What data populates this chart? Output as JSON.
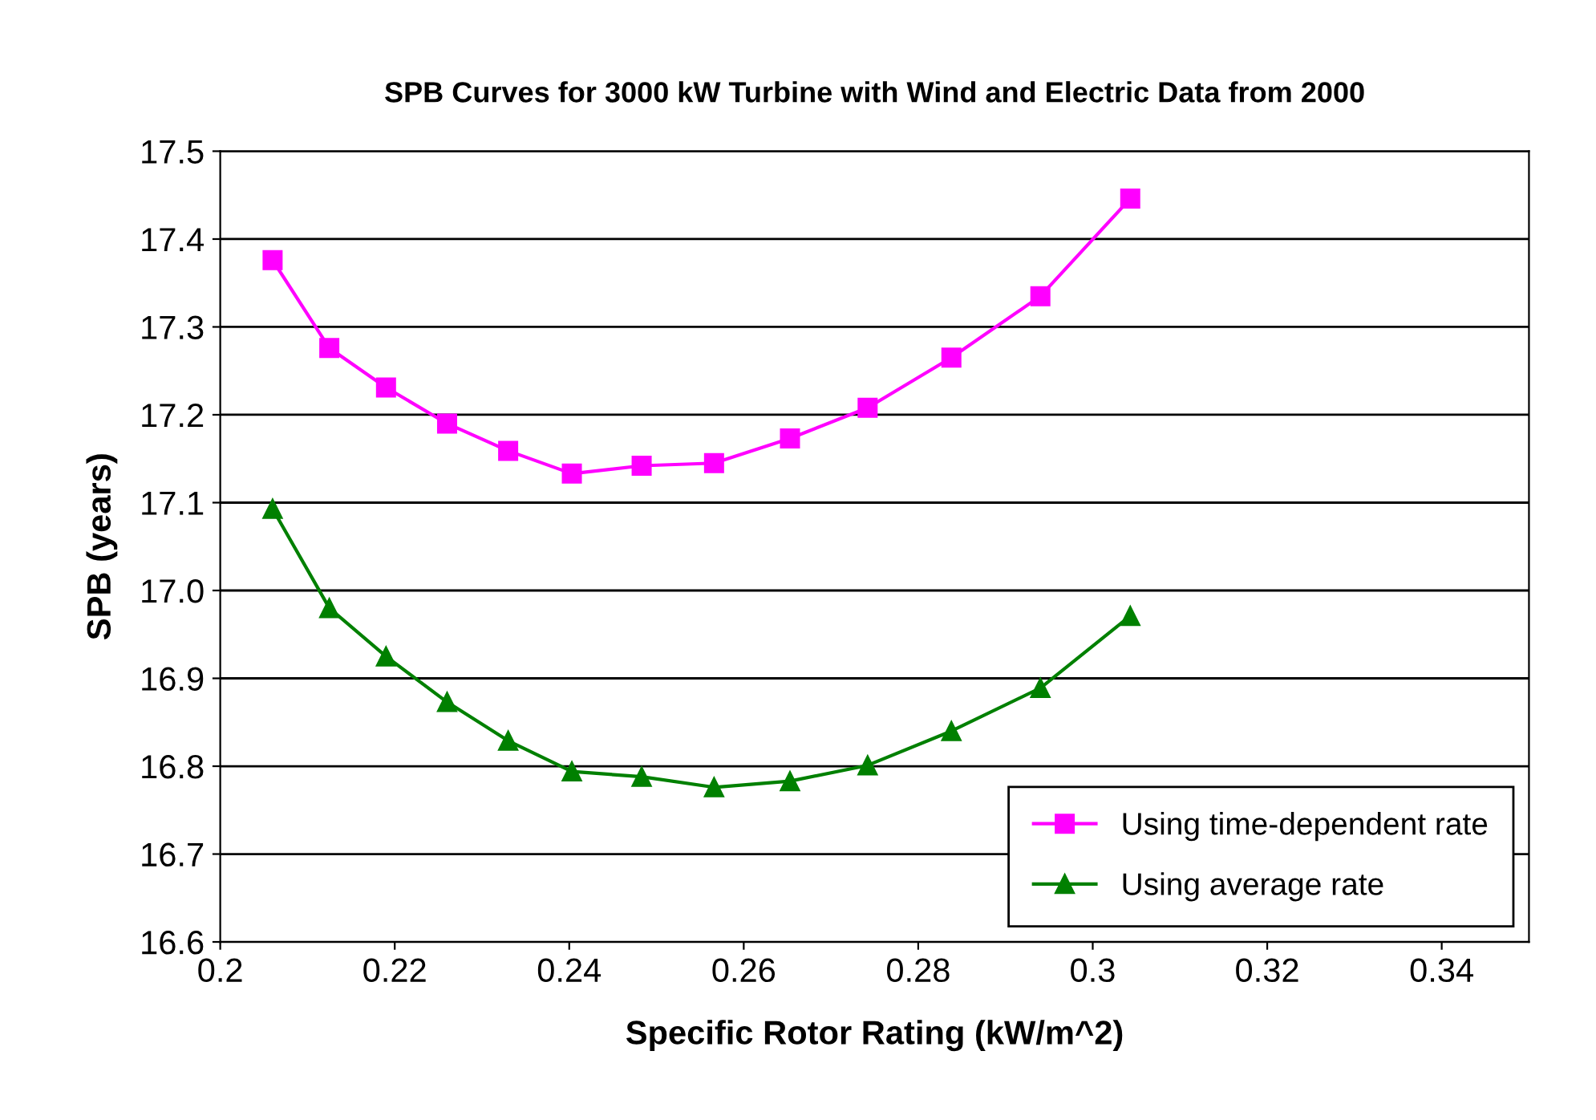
{
  "chart_data": {
    "type": "line",
    "title": "SPB Curves for 3000 kW Turbine with Wind and Electric Data from 2000",
    "xlabel": "Specific Rotor Rating (kW/m^2)",
    "ylabel": "SPB (years)",
    "x": [
      0.206,
      0.2125,
      0.219,
      0.226,
      0.233,
      0.2403,
      0.2483,
      0.2566,
      0.2653,
      0.2742,
      0.2838,
      0.294,
      0.3043
    ],
    "series": [
      {
        "name": "Using time-dependent rate",
        "color": "#ff00ff",
        "marker": "square",
        "values": [
          17.376,
          17.276,
          17.231,
          17.19,
          17.159,
          17.133,
          17.142,
          17.145,
          17.173,
          17.208,
          17.265,
          17.335,
          17.446
        ]
      },
      {
        "name": "Using average rate",
        "color": "#008000",
        "marker": "triangle",
        "values": [
          17.093,
          16.98,
          16.925,
          16.873,
          16.829,
          16.794,
          16.788,
          16.776,
          16.783,
          16.801,
          16.84,
          16.889,
          16.971
        ]
      }
    ],
    "xlim": [
      0.2,
      0.35
    ],
    "xticks": [
      0.2,
      0.22,
      0.24,
      0.26,
      0.28,
      0.3,
      0.32,
      0.34
    ],
    "ylim": [
      16.6,
      17.5
    ],
    "yticks": [
      {
        "value": 16.6,
        "label": "16.6"
      },
      {
        "value": 16.7,
        "label": "16.7"
      },
      {
        "value": 16.8,
        "label": "16.8"
      },
      {
        "value": 16.9,
        "label": "16.9"
      },
      {
        "value": 17.0,
        "label": "17.0"
      },
      {
        "value": 17.1,
        "label": "17.1"
      },
      {
        "value": 17.2,
        "label": "17.2"
      },
      {
        "value": 17.3,
        "label": "17.3"
      },
      {
        "value": 17.4,
        "label": "17.4"
      },
      {
        "value": 17.5,
        "label": "17.5"
      }
    ],
    "grid": "y",
    "legend": "bottom right"
  }
}
